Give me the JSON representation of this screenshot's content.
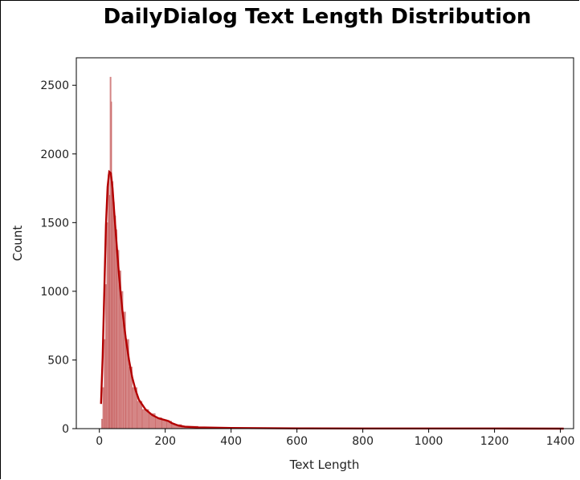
{
  "chart_data": {
    "type": "bar",
    "title": "DailyDialog Text Length Distribution",
    "xlabel": "Text Length",
    "ylabel": "Count",
    "xlim": [
      -70,
      1440
    ],
    "ylim": [
      0,
      2700
    ],
    "xticks": [
      0,
      200,
      400,
      600,
      800,
      1000,
      1200,
      1400
    ],
    "yticks": [
      0,
      500,
      1000,
      1500,
      2000,
      2500
    ],
    "grid": false,
    "series": [
      {
        "kind": "histogram",
        "bin_width": 2,
        "color": "#b22222",
        "approx_bins": [
          {
            "x": 6,
            "count": 70
          },
          {
            "x": 10,
            "count": 300
          },
          {
            "x": 14,
            "count": 650
          },
          {
            "x": 18,
            "count": 1050
          },
          {
            "x": 22,
            "count": 1500
          },
          {
            "x": 26,
            "count": 1850
          },
          {
            "x": 30,
            "count": 1700
          },
          {
            "x": 32,
            "count": 2560
          },
          {
            "x": 36,
            "count": 2380
          },
          {
            "x": 38,
            "count": 1800
          },
          {
            "x": 42,
            "count": 1650
          },
          {
            "x": 46,
            "count": 1550
          },
          {
            "x": 50,
            "count": 1450
          },
          {
            "x": 54,
            "count": 1300
          },
          {
            "x": 60,
            "count": 1150
          },
          {
            "x": 66,
            "count": 1000
          },
          {
            "x": 72,
            "count": 850
          },
          {
            "x": 80,
            "count": 650
          },
          {
            "x": 90,
            "count": 450
          },
          {
            "x": 100,
            "count": 300
          },
          {
            "x": 115,
            "count": 200
          },
          {
            "x": 130,
            "count": 140
          },
          {
            "x": 150,
            "count": 110
          },
          {
            "x": 170,
            "count": 80
          },
          {
            "x": 190,
            "count": 65
          },
          {
            "x": 205,
            "count": 55
          },
          {
            "x": 220,
            "count": 30
          },
          {
            "x": 250,
            "count": 18
          },
          {
            "x": 300,
            "count": 10
          },
          {
            "x": 400,
            "count": 5
          },
          {
            "x": 600,
            "count": 2
          },
          {
            "x": 1000,
            "count": 1
          },
          {
            "x": 1410,
            "count": 1
          }
        ]
      },
      {
        "kind": "kde",
        "color": "#b30000",
        "x": [
          5,
          10,
          15,
          20,
          25,
          30,
          35,
          40,
          45,
          50,
          55,
          60,
          65,
          70,
          75,
          80,
          90,
          100,
          110,
          120,
          140,
          160,
          180,
          200,
          210,
          220,
          240,
          260,
          300,
          400,
          600,
          800,
          1000,
          1200,
          1410
        ],
        "y": [
          180,
          520,
          1000,
          1480,
          1760,
          1870,
          1860,
          1750,
          1580,
          1420,
          1260,
          1110,
          980,
          860,
          760,
          660,
          500,
          370,
          280,
          210,
          140,
          100,
          75,
          62,
          55,
          40,
          22,
          14,
          9,
          5,
          2,
          1,
          1,
          1,
          0
        ]
      }
    ]
  }
}
